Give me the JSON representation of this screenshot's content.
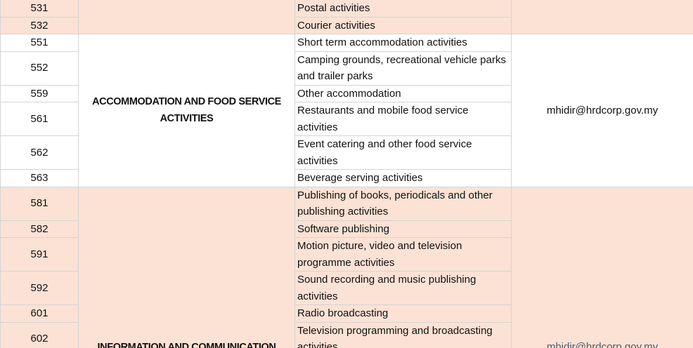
{
  "groups": [
    {
      "rows": [
        {
          "code": 531,
          "description": "Postal activities"
        },
        {
          "code": 532,
          "description": "Courier activities"
        }
      ]
    },
    {
      "sector": "ACCOMMODATION AND FOOD SERVICE ACTIVITIES",
      "email": "mhidir@hrdcorp.gov.my",
      "rows": [
        {
          "code": 551,
          "description": "Short term accommodation activities"
        },
        {
          "code": 552,
          "description": "Camping grounds, recreational vehicle parks and trailer parks"
        },
        {
          "code": 559,
          "description": "Other accommodation"
        },
        {
          "code": 561,
          "description": "Restaurants and mobile food service activities"
        },
        {
          "code": 562,
          "description": "Event catering and other food service activities"
        },
        {
          "code": 563,
          "description": "Beverage serving activities"
        }
      ]
    },
    {
      "sector": "INFORMATION AND COMMUNICATION",
      "email": "mhidir@hrdcorp.gov.my",
      "rows": [
        {
          "code": 581,
          "description": "Publishing of books, periodicals and other publishing activities"
        },
        {
          "code": 582,
          "description": "Software publishing"
        },
        {
          "code": 591,
          "description": "Motion picture, video and television programme activities"
        },
        {
          "code": 592,
          "description": "Sound recording and music publishing activities"
        },
        {
          "code": 601,
          "description": "Radio broadcasting"
        },
        {
          "code": 602,
          "description": "Television programming and broadcasting activities"
        }
      ]
    }
  ]
}
